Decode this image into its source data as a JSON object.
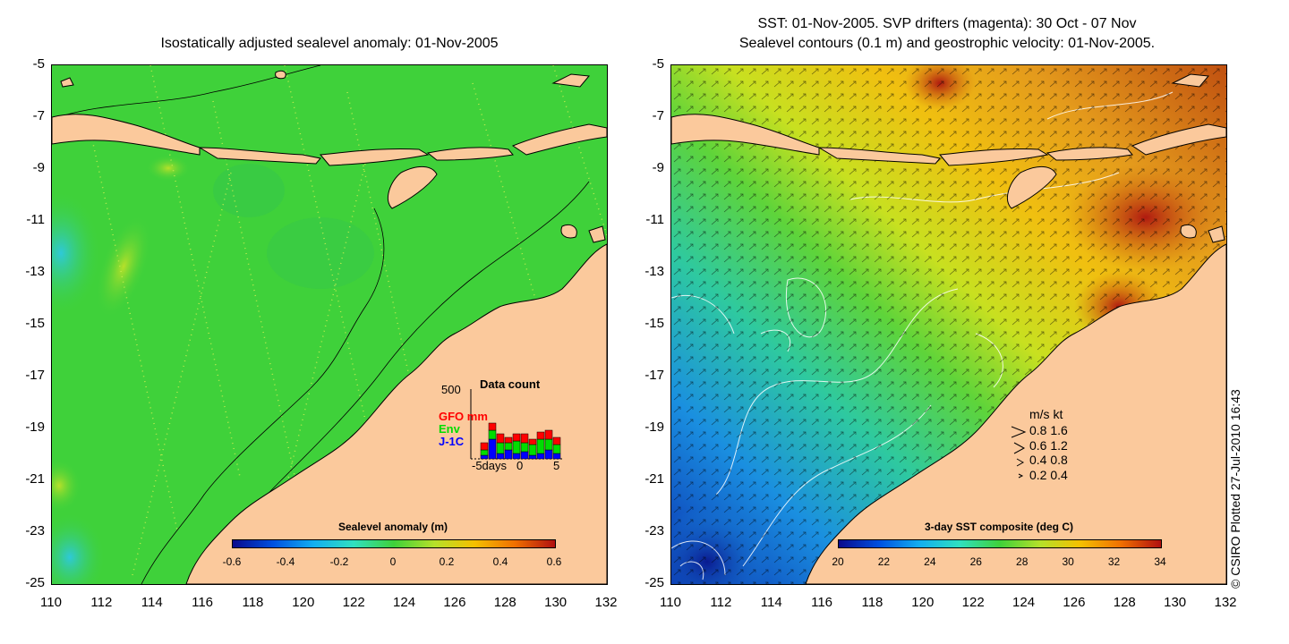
{
  "left_panel": {
    "title": "Isostatically adjusted sealevel anomaly: 01-Nov-2005",
    "y_ticks": [
      "-5",
      "-7",
      "-9",
      "-11",
      "-13",
      "-15",
      "-17",
      "-19",
      "-21",
      "-23",
      "-25"
    ],
    "x_ticks": [
      "110",
      "112",
      "114",
      "116",
      "118",
      "120",
      "122",
      "124",
      "126",
      "128",
      "130",
      "132"
    ],
    "colorbar": {
      "title": "Sealevel anomaly (m)",
      "ticks": [
        "-0.6",
        "-0.4",
        "-0.2",
        "0",
        "0.2",
        "0.4",
        "0.6"
      ]
    },
    "data_count": {
      "title": "Data count",
      "y_max_label": "500",
      "series": [
        "GFO mm",
        "Env",
        "J-1C"
      ],
      "series_colors": [
        "#ff0000",
        "#00dd00",
        "#0000ff"
      ],
      "x_labels": [
        "-5days",
        "0",
        "5"
      ]
    }
  },
  "right_panel": {
    "title_line1": "SST: 01-Nov-2005. SVP drifters (magenta): 30 Oct - 07 Nov",
    "title_line2": "Sealevel contours (0.1 m) and geostrophic velocity: 01-Nov-2005.",
    "y_ticks": [
      "-5",
      "-7",
      "-9",
      "-11",
      "-13",
      "-15",
      "-17",
      "-19",
      "-21",
      "-23",
      "-25"
    ],
    "x_ticks": [
      "110",
      "112",
      "114",
      "116",
      "118",
      "120",
      "122",
      "124",
      "126",
      "128",
      "130",
      "132"
    ],
    "colorbar": {
      "title": "3-day SST composite (deg C)",
      "ticks": [
        "20",
        "22",
        "24",
        "26",
        "28",
        "30",
        "32",
        "34"
      ]
    },
    "velocity_legend": {
      "header": "m/s  kt",
      "rows": [
        "0.8  1.6",
        "0.6  1.2",
        "0.4  0.8",
        "0.2  0.4"
      ]
    }
  },
  "credit": "© CSIRO Plotted 27-Jul-2010 16:43",
  "colors": {
    "land": "#fbc99c",
    "ocean_green": "#3fd13a",
    "sst_orange": "#e49a1c",
    "sst_blue": "#1a8fe0"
  }
}
